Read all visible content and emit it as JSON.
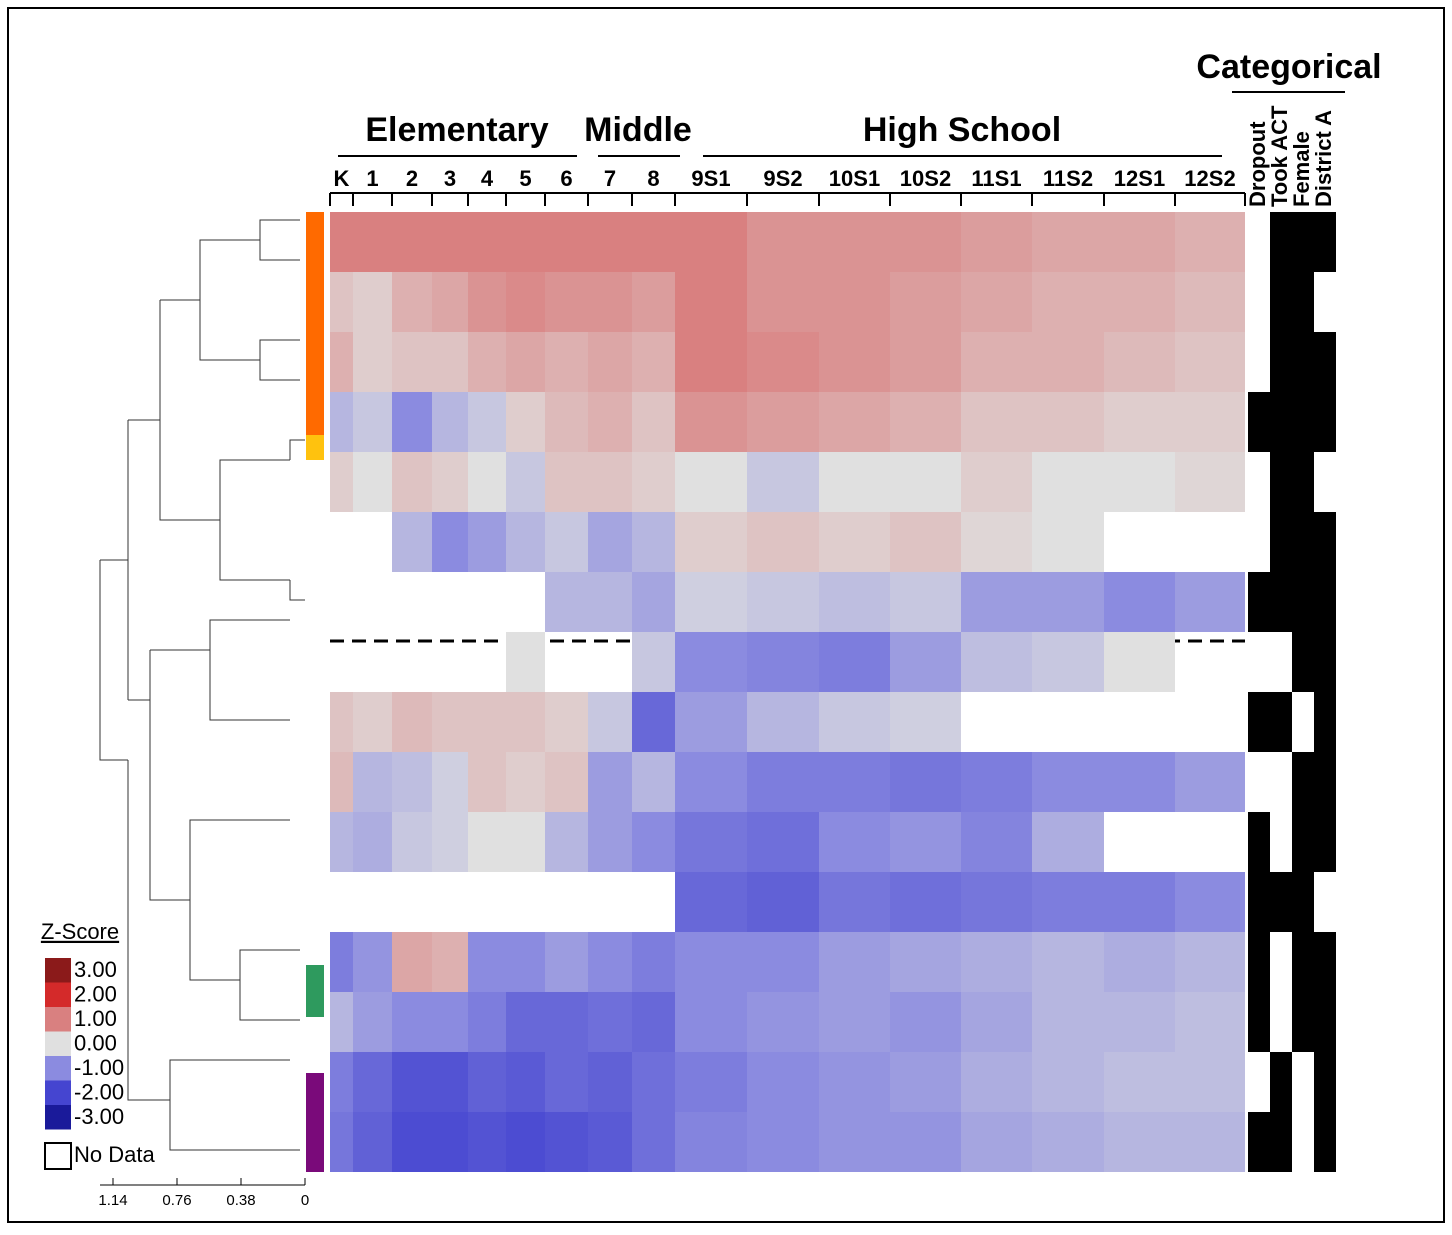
{
  "chart_data": {
    "type": "heatmap",
    "groups": [
      "Elementary",
      "Middle",
      "High School",
      "Categorical"
    ],
    "columns": [
      "K",
      "1",
      "2",
      "3",
      "4",
      "5",
      "6",
      "7",
      "8",
      "9S1",
      "9S2",
      "10S1",
      "10S2",
      "11S1",
      "11S2",
      "12S1",
      "12S2"
    ],
    "categorical_columns": [
      "Dropout",
      "Took ACT",
      "Female",
      "District A"
    ],
    "values": [
      [
        1,
        1,
        1,
        1,
        1,
        1,
        1,
        1,
        1,
        1,
        0.8,
        0.8,
        0.8,
        0.7,
        0.6,
        0.6,
        0.5
      ],
      [
        0.3,
        0.2,
        0.5,
        0.6,
        0.8,
        0.9,
        0.8,
        0.8,
        0.7,
        1,
        0.8,
        0.8,
        0.7,
        0.6,
        0.5,
        0.5,
        0.4
      ],
      [
        0.5,
        0.2,
        0.3,
        0.3,
        0.5,
        0.6,
        0.5,
        0.6,
        0.5,
        1,
        0.9,
        0.8,
        0.7,
        0.5,
        0.5,
        0.4,
        0.3
      ],
      [
        -0.5,
        -0.3,
        -1,
        -0.5,
        -0.3,
        0.2,
        0.4,
        0.5,
        0.3,
        0.8,
        0.7,
        0.6,
        0.5,
        0.3,
        0.3,
        0.2,
        0.2
      ],
      [
        0.2,
        0,
        0.3,
        0.2,
        0,
        -0.3,
        0.3,
        0.3,
        0.2,
        0,
        -0.3,
        0,
        0,
        0.2,
        0,
        0,
        0.1
      ],
      [
        null,
        null,
        -0.5,
        -1,
        -0.8,
        -0.5,
        -0.3,
        -0.7,
        -0.5,
        0.2,
        0.3,
        0.2,
        0.3,
        0.1,
        0,
        null,
        null
      ],
      [
        null,
        null,
        null,
        null,
        null,
        null,
        -0.5,
        -0.5,
        -0.7,
        -0.2,
        -0.3,
        -0.4,
        -0.3,
        -0.8,
        -0.8,
        -1,
        -0.8
      ],
      [
        null,
        null,
        null,
        null,
        null,
        0,
        null,
        null,
        -0.3,
        -1,
        -1.1,
        -1.2,
        -0.8,
        -0.4,
        -0.3,
        0,
        null
      ],
      [
        0.3,
        0.2,
        0.4,
        0.3,
        0.3,
        0.3,
        0.2,
        -0.3,
        -1.5,
        -0.8,
        -0.5,
        -0.3,
        -0.2,
        null,
        null,
        null,
        null
      ],
      [
        0.4,
        -0.5,
        -0.4,
        -0.2,
        0.3,
        0.2,
        0.3,
        -0.8,
        -0.5,
        -1,
        -1.2,
        -1.2,
        -1.3,
        -1.2,
        -1,
        -1,
        -0.8
      ],
      [
        -0.5,
        -0.6,
        -0.3,
        -0.2,
        0,
        0,
        -0.5,
        -0.8,
        -1,
        -1.3,
        -1.4,
        -1,
        -0.9,
        -1.1,
        -0.6,
        null,
        null
      ],
      [
        null,
        null,
        null,
        null,
        null,
        null,
        null,
        null,
        null,
        -1.5,
        -1.6,
        -1.3,
        -1.4,
        -1.3,
        -1.2,
        -1.2,
        -1
      ],
      [
        -1.2,
        -0.9,
        0.6,
        0.5,
        -1,
        -1,
        -0.8,
        -1,
        -1.2,
        -1,
        -1,
        -0.8,
        -0.7,
        -0.6,
        -0.5,
        -0.6,
        -0.5
      ],
      [
        -0.5,
        -0.8,
        -1,
        -1,
        -1.2,
        -1.5,
        -1.5,
        -1.4,
        -1.5,
        -1,
        -0.9,
        -0.8,
        -0.9,
        -0.7,
        -0.5,
        -0.5,
        -0.4
      ],
      [
        -1.2,
        -1.5,
        -1.8,
        -1.8,
        -1.6,
        -1.7,
        -1.5,
        -1.6,
        -1.4,
        -1.2,
        -1,
        -0.9,
        -0.8,
        -0.6,
        -0.5,
        -0.4,
        -0.4
      ],
      [
        -1.3,
        -1.6,
        -1.9,
        -1.9,
        -1.8,
        -1.9,
        -1.8,
        -1.7,
        -1.4,
        -1.1,
        -1,
        -0.9,
        -0.9,
        -0.7,
        -0.6,
        -0.5,
        -0.5
      ]
    ],
    "categorical_values": [
      [
        0,
        1,
        1,
        1
      ],
      [
        0,
        1,
        1,
        0
      ],
      [
        0,
        1,
        1,
        1
      ],
      [
        1,
        1,
        1,
        1
      ],
      [
        0,
        1,
        1,
        0
      ],
      [
        0,
        1,
        1,
        1
      ],
      [
        1,
        1,
        1,
        1
      ],
      [
        0,
        0,
        1,
        1
      ],
      [
        1,
        1,
        0,
        1
      ],
      [
        0,
        0,
        1,
        1
      ],
      [
        1,
        0,
        1,
        1
      ],
      [
        1,
        1,
        1,
        0
      ],
      [
        1,
        0,
        1,
        1
      ],
      [
        1,
        0,
        1,
        1
      ],
      [
        0,
        1,
        0,
        1
      ],
      [
        1,
        1,
        0,
        1
      ]
    ],
    "categorical_color": "#000000",
    "legend": {
      "title": "Z-Score",
      "no_data": "No Data",
      "stops": [
        {
          "value": 3,
          "label": "3.00"
        },
        {
          "value": 2,
          "label": "2.00"
        },
        {
          "value": 1,
          "label": "1.00"
        },
        {
          "value": 0,
          "label": "0.00"
        },
        {
          "value": -1,
          "label": "-1.00"
        },
        {
          "value": -2,
          "label": "-2.00"
        },
        {
          "value": -3,
          "label": "-3.00"
        }
      ],
      "colors": [
        "#8b1a1a",
        "#d42a2a",
        "#d98080",
        "#e0e0e0",
        "#8b8be0",
        "#4545d0",
        "#1a1a9a"
      ]
    },
    "dendrogram_xlim": [
      1.14,
      0
    ],
    "dendrogram_xticks": [
      {
        "value": 1.14,
        "label": "1.14"
      },
      {
        "value": 0.76,
        "label": "0.76"
      },
      {
        "value": 0.38,
        "label": "0.38"
      },
      0
    ]
  }
}
